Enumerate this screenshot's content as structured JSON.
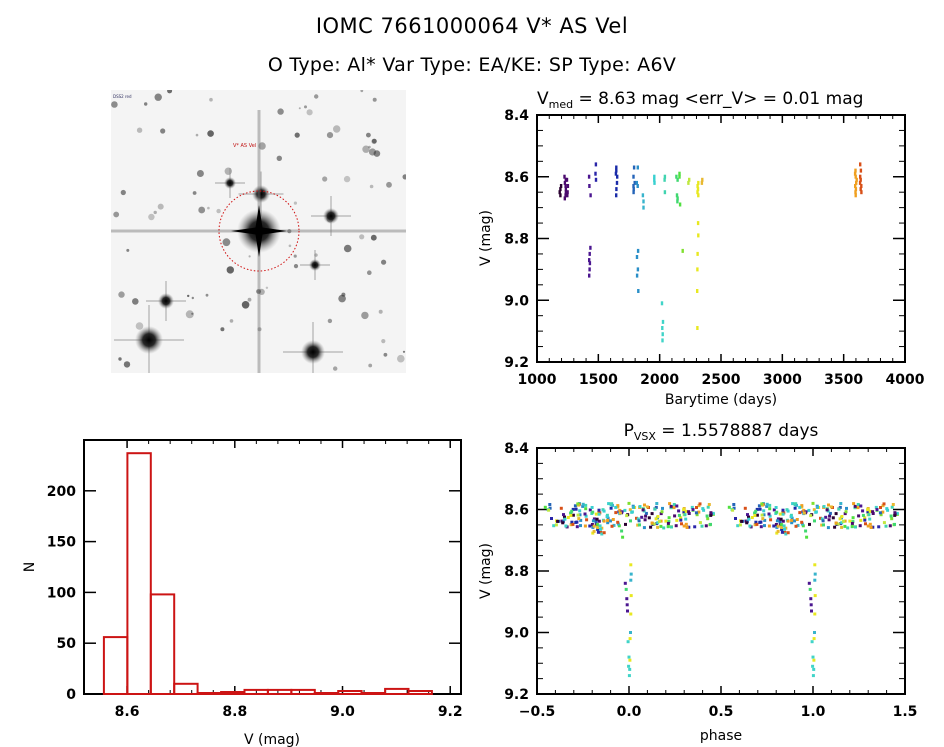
{
  "header": {
    "title": "IOMC 7661000064    V* AS Vel",
    "subtitle": "O Type: Al*   Var Type: EA/KE:   SP Type: A6V"
  },
  "sky_image": {
    "description": "finding chart star field",
    "target_marker": "red dotted circle"
  },
  "chart_data": [
    {
      "id": "light_curve",
      "type": "scatter",
      "title_main": "V",
      "title_sub": "med",
      "title_rest": " = 8.63 mag <err_V> = 0.01 mag",
      "xlabel": "Barytime (days)",
      "ylabel": "V (mag)",
      "xlim": [
        1000,
        4000
      ],
      "ylim": [
        9.2,
        8.4
      ],
      "y_inverted": true,
      "xticks": [
        "1000",
        "1500",
        "2000",
        "2500",
        "3000",
        "3500",
        "4000"
      ],
      "xtick_values": [
        1000,
        1500,
        2000,
        2500,
        3000,
        3500,
        4000
      ],
      "yticks": [
        "8.4",
        "8.6",
        "8.8",
        "9.0",
        "9.2"
      ],
      "ytick_values": [
        8.4,
        8.6,
        8.8,
        9.0,
        9.2
      ],
      "groups": [
        {
          "x": 1190,
          "color": "#2a0030",
          "v": [
            8.63,
            8.64,
            8.65,
            8.66
          ]
        },
        {
          "x": 1230,
          "color": "#4b0a6e",
          "v": [
            8.6,
            8.61,
            8.62,
            8.63,
            8.64,
            8.65,
            8.66,
            8.67
          ]
        },
        {
          "x": 1250,
          "color": "#4b0a6e",
          "v": [
            8.61,
            8.63,
            8.65,
            8.66
          ]
        },
        {
          "x": 1430,
          "color": "#4b1690",
          "v": [
            8.6,
            8.63,
            8.66,
            8.83,
            8.85,
            8.87,
            8.88,
            8.9,
            8.92
          ]
        },
        {
          "x": 1480,
          "color": "#2a25a8",
          "v": [
            8.56,
            8.59,
            8.61
          ]
        },
        {
          "x": 1650,
          "color": "#1a2ba8",
          "v": [
            8.57,
            8.58,
            8.59,
            8.6,
            8.62,
            8.64,
            8.66
          ]
        },
        {
          "x": 1790,
          "color": "#2464b8",
          "v": [
            8.57,
            8.6,
            8.62,
            8.63,
            8.64,
            8.65
          ]
        },
        {
          "x": 1820,
          "color": "#2a8fc8",
          "v": [
            8.57,
            8.62,
            8.63,
            8.84,
            8.86,
            8.9,
            8.92,
            8.97
          ]
        },
        {
          "x": 1870,
          "color": "#38b4cc",
          "v": [
            8.66,
            8.68,
            8.7
          ]
        },
        {
          "x": 1960,
          "color": "#38d0d0",
          "v": [
            8.6,
            8.61,
            8.62
          ]
        },
        {
          "x": 2020,
          "color": "#40d4c8",
          "v": [
            9.01,
            9.07,
            9.09,
            9.11,
            9.13
          ]
        },
        {
          "x": 2040,
          "color": "#40d4b0",
          "v": [
            8.6,
            8.61,
            8.65
          ]
        },
        {
          "x": 2140,
          "color": "#40d870",
          "v": [
            8.6,
            8.61,
            8.66,
            8.67,
            8.68
          ]
        },
        {
          "x": 2160,
          "color": "#50e040",
          "v": [
            8.59,
            8.6,
            8.69
          ]
        },
        {
          "x": 2190,
          "color": "#80e030",
          "v": [
            8.84
          ]
        },
        {
          "x": 2240,
          "color": "#c0e840",
          "v": [
            8.61,
            8.62
          ]
        },
        {
          "x": 2310,
          "color": "#e8e820",
          "v": [
            8.62,
            8.63,
            8.64,
            8.65,
            8.66,
            8.75,
            8.79,
            8.85,
            8.9,
            8.97,
            9.09
          ]
        },
        {
          "x": 2350,
          "color": "#e8b830",
          "v": [
            8.61,
            8.62
          ]
        },
        {
          "x": 3600,
          "color": "#f0a020",
          "v": [
            8.58,
            8.59,
            8.6,
            8.61,
            8.62,
            8.63,
            8.64,
            8.65,
            8.66
          ]
        },
        {
          "x": 3640,
          "color": "#d85018",
          "v": [
            8.56,
            8.58,
            8.6,
            8.61,
            8.62,
            8.63,
            8.64,
            8.65
          ]
        }
      ]
    },
    {
      "id": "histogram",
      "type": "bar",
      "xlabel": "V (mag)",
      "ylabel": "N",
      "xlim": [
        8.52,
        9.22
      ],
      "ylim": [
        0,
        250
      ],
      "xticks": [
        "8.6",
        "8.8",
        "9.0",
        "9.2"
      ],
      "xtick_values": [
        8.6,
        8.8,
        9.0,
        9.2
      ],
      "yticks": [
        "0",
        "50",
        "100",
        "150",
        "200"
      ],
      "ytick_values": [
        0,
        50,
        100,
        150,
        200
      ],
      "bin_width": 0.0435,
      "bin_start": 8.557,
      "counts": [
        56,
        237,
        98,
        10,
        1,
        2,
        4,
        4,
        4,
        1,
        3,
        1,
        5,
        3
      ],
      "color": "#cc1414"
    },
    {
      "id": "phase_curve",
      "type": "scatter",
      "title_main": "P",
      "title_sub": "VSX",
      "title_rest": " = 1.5578887 days",
      "xlabel": "phase",
      "ylabel": "V (mag)",
      "xlim": [
        -0.5,
        1.5
      ],
      "ylim": [
        9.2,
        8.4
      ],
      "y_inverted": true,
      "xticks": [
        "-0.5",
        "0.0",
        "0.5",
        "1.0",
        "1.5"
      ],
      "xtick_values": [
        -0.5,
        0.0,
        0.5,
        1.0,
        1.5
      ],
      "yticks": [
        "8.4",
        "8.6",
        "8.8",
        "9.0",
        "9.2"
      ],
      "ytick_values": [
        8.4,
        8.6,
        8.8,
        9.0,
        9.2
      ],
      "period_days": 1.5578887,
      "eclipse_phase": 0.0
    }
  ]
}
